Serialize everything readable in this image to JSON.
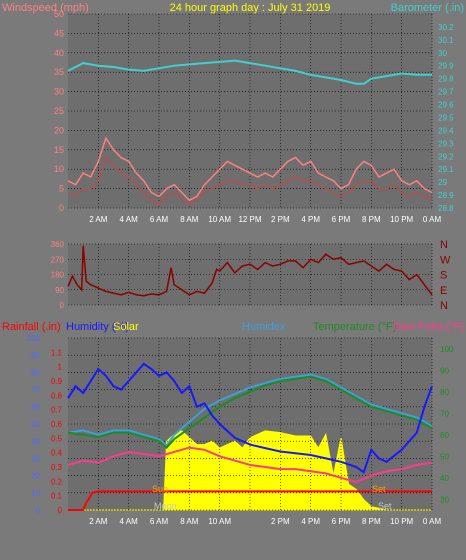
{
  "title": "24 hour graph day : July 31 2019",
  "colors": {
    "background": "#7a7a7a",
    "plot": "#6e6e6e",
    "grid": "#000000",
    "wind_gust": "#ff8080",
    "wind_avg": "#b05050",
    "barometer": "#40d0d0",
    "direction": "#8b0000",
    "rain": "#ff0000",
    "humidity": "#1818ff",
    "solar": "#ffff00",
    "humidex": "#3aa0e0",
    "temperature": "#1e8c1e",
    "dew_point": "#ff3a8a",
    "sun_text": "#ffa000",
    "moon_text": "#c8c8c8"
  },
  "chart_data": [
    {
      "id": "wind",
      "type": "line",
      "ylabel_left": "Windspeed (mph)",
      "ylabel_right": "Barometer (.in)",
      "ylim_left": [
        0,
        50
      ],
      "yticks_left": [
        "0",
        "5",
        "10",
        "15",
        "20",
        "25",
        "30",
        "35",
        "40",
        "45",
        "50"
      ],
      "ylim_right": [
        28.8,
        30.3
      ],
      "yticks_right": [
        "28.8",
        "28.9",
        "29",
        "29.1",
        "29.2",
        "29.3",
        "29.4",
        "29.5",
        "29.6",
        "29.7",
        "29.8",
        "29.9",
        "30",
        "30.1",
        "30.2"
      ],
      "xlim": [
        0,
        24
      ],
      "xticks": [
        "2 AM",
        "4 AM",
        "6 AM",
        "8 AM",
        "10 AM",
        "12 PM",
        "2 PM",
        "4 PM",
        "6 PM",
        "8 PM",
        "10 PM",
        "0 AM"
      ],
      "series": [
        {
          "name": "gust",
          "x": [
            0,
            0.5,
            1,
            1.5,
            2,
            2.5,
            3,
            3.5,
            4,
            4.5,
            5,
            5.5,
            6,
            6.5,
            7,
            7.5,
            8,
            8.5,
            9,
            9.5,
            10,
            10.5,
            11,
            11.5,
            12,
            12.5,
            13,
            13.5,
            14,
            14.5,
            15,
            15.5,
            16,
            16.5,
            17,
            17.5,
            18,
            18.5,
            19,
            19.5,
            20,
            20.5,
            21,
            21.5,
            22,
            22.5,
            23,
            23.5,
            24
          ],
          "values": [
            7,
            6,
            9,
            8,
            12,
            18,
            15,
            13,
            12,
            9,
            7,
            4,
            3,
            5,
            6,
            4,
            2,
            3,
            6,
            8,
            10,
            12,
            11,
            10,
            9,
            8,
            9,
            8,
            10,
            12,
            13,
            11,
            12,
            9,
            8,
            7,
            5,
            6,
            10,
            12,
            11,
            8,
            9,
            10,
            7,
            6,
            7,
            5,
            4
          ]
        },
        {
          "name": "average",
          "x": [
            0,
            0.5,
            1,
            1.5,
            2,
            2.5,
            3,
            3.5,
            4,
            4.5,
            5,
            5.5,
            6,
            6.5,
            7,
            7.5,
            8,
            8.5,
            9,
            9.5,
            10,
            10.5,
            11,
            11.5,
            12,
            12.5,
            13,
            13.5,
            14,
            14.5,
            15,
            15.5,
            16,
            16.5,
            17,
            17.5,
            18,
            18.5,
            19,
            19.5,
            20,
            20.5,
            21,
            21.5,
            22,
            22.5,
            23,
            23.5,
            24
          ],
          "values": [
            4,
            3,
            5,
            5,
            7,
            13,
            11,
            9,
            8,
            6,
            4,
            2,
            1,
            3,
            4,
            2,
            1,
            2,
            4,
            5,
            6,
            7,
            7,
            6,
            6,
            5,
            6,
            5,
            6,
            7,
            8,
            7,
            7,
            6,
            5,
            4,
            3,
            4,
            6,
            7,
            7,
            5,
            5,
            6,
            4,
            3,
            4,
            3,
            2
          ]
        },
        {
          "name": "barometer",
          "axis": "right",
          "x": [
            0,
            1,
            2,
            3,
            4,
            5,
            6,
            7,
            8,
            9,
            10,
            11,
            12,
            13,
            14,
            15,
            16,
            17,
            18,
            19,
            19.5,
            20,
            21,
            22,
            23,
            24
          ],
          "values": [
            29.86,
            29.92,
            29.9,
            29.89,
            29.87,
            29.86,
            29.88,
            29.9,
            29.91,
            29.92,
            29.93,
            29.94,
            29.92,
            29.9,
            29.88,
            29.86,
            29.83,
            29.81,
            29.79,
            29.76,
            29.76,
            29.8,
            29.82,
            29.84,
            29.83,
            29.83
          ]
        }
      ]
    },
    {
      "id": "direction",
      "type": "line",
      "ylim": [
        0,
        360
      ],
      "yticks": [
        "0",
        "90",
        "180",
        "270",
        "360"
      ],
      "compass": [
        "N",
        "W",
        "S",
        "E",
        "N"
      ],
      "xlim": [
        0,
        24
      ],
      "series": [
        {
          "name": "direction",
          "x": [
            0,
            0.3,
            0.6,
            0.9,
            1,
            1.2,
            1.5,
            2,
            2.5,
            3,
            3.5,
            4,
            4.5,
            5,
            5.5,
            6,
            6.5,
            6.8,
            7,
            7.5,
            8,
            8.5,
            9,
            9.5,
            9.8,
            10,
            10.5,
            11,
            11.5,
            12,
            12.5,
            13,
            13.5,
            14,
            14.5,
            15,
            15.5,
            16,
            16.5,
            17,
            17.5,
            18,
            18.5,
            19,
            19.5,
            20,
            20.5,
            21,
            21.5,
            22,
            22.5,
            23,
            23.5,
            24
          ],
          "values": [
            110,
            170,
            120,
            90,
            350,
            140,
            120,
            100,
            80,
            70,
            60,
            75,
            60,
            55,
            65,
            60,
            80,
            220,
            120,
            90,
            60,
            80,
            70,
            130,
            210,
            200,
            250,
            190,
            230,
            240,
            210,
            250,
            230,
            240,
            260,
            260,
            220,
            270,
            250,
            300,
            270,
            280,
            240,
            250,
            260,
            230,
            200,
            240,
            210,
            200,
            150,
            180,
            120,
            60
          ]
        }
      ]
    },
    {
      "id": "conditions",
      "type": "line",
      "ylabel_rain": "Rainfall (.in)",
      "ylabel_humidity": "Humidity (%)",
      "ylabel_solar": "Solar",
      "ylabel_humidex": "Humidex",
      "ylabel_temperature": "Temperature (°F)",
      "ylabel_dew": "Dew Point (°F)",
      "ylim_humidity": [
        0,
        100
      ],
      "yticks_humidity": [
        "0",
        "10",
        "20",
        "30",
        "40",
        "50",
        "60",
        "70",
        "80",
        "90",
        "100"
      ],
      "ylim_rain": [
        0,
        1.2
      ],
      "yticks_rain": [
        "0",
        "0.1",
        "0.2",
        "0.3",
        "0.4",
        "0.5",
        "0.6",
        "0.7",
        "0.8",
        "0.9",
        "1",
        "1.1"
      ],
      "ylim_temp": [
        25,
        105
      ],
      "yticks_temp": [
        "30",
        "40",
        "50",
        "60",
        "70",
        "80",
        "90",
        "100"
      ],
      "xlim": [
        0,
        24
      ],
      "xticks": [
        "2 AM",
        "4 AM",
        "6 AM",
        "8 AM",
        "10 AM",
        "2 PM",
        "4 PM",
        "6 PM",
        "8 PM",
        "10 PM",
        "0 AM"
      ],
      "xticks_hours": [
        2,
        4,
        6,
        8,
        10,
        14,
        16,
        18,
        20,
        22,
        24
      ],
      "series": [
        {
          "name": "humidity",
          "x": [
            0,
            0.5,
            1,
            1.5,
            2,
            2.5,
            3,
            3.5,
            4,
            4.5,
            5,
            5.5,
            6,
            6.5,
            7,
            7.5,
            8,
            8.5,
            9,
            9.5,
            10,
            11,
            12,
            13,
            14,
            15,
            16,
            17,
            18,
            19,
            19.5,
            20,
            20.5,
            21,
            22,
            23,
            23.5,
            24
          ],
          "values": [
            65,
            72,
            68,
            75,
            82,
            78,
            72,
            70,
            75,
            80,
            85,
            82,
            78,
            80,
            75,
            68,
            72,
            60,
            62,
            55,
            50,
            42,
            38,
            36,
            34,
            33,
            32,
            30,
            28,
            25,
            22,
            35,
            30,
            28,
            35,
            45,
            60,
            72
          ]
        },
        {
          "name": "humidex",
          "x": [
            0,
            1,
            2,
            3,
            4,
            5,
            6,
            6.5,
            7,
            8,
            9,
            10,
            11,
            12,
            13,
            14,
            15,
            16,
            17,
            18,
            19,
            20,
            21,
            22,
            23,
            24
          ],
          "values": [
            61,
            62,
            60,
            62,
            62,
            60,
            58,
            55,
            60,
            66,
            72,
            76,
            79,
            82,
            84,
            86,
            87,
            88,
            86,
            82,
            78,
            74,
            72,
            70,
            68,
            64
          ]
        },
        {
          "name": "temperature",
          "x": [
            0,
            1,
            2,
            3,
            4,
            5,
            6,
            6.5,
            7,
            8,
            9,
            10,
            11,
            12,
            13,
            14,
            15,
            16,
            17,
            18,
            19,
            20,
            21,
            22,
            23,
            24
          ],
          "values": [
            61,
            60,
            59,
            61,
            61,
            59,
            57,
            54,
            58,
            63,
            68,
            73,
            77,
            80,
            83,
            85,
            86,
            87,
            85,
            81,
            77,
            73,
            71,
            69,
            67,
            63
          ]
        },
        {
          "name": "dew_point",
          "x": [
            0,
            1,
            2,
            3,
            4,
            5,
            6,
            7,
            8,
            9,
            10,
            11,
            12,
            13,
            14,
            15,
            16,
            17,
            18,
            19,
            20,
            21,
            22,
            23,
            24
          ],
          "values": [
            46,
            48,
            47,
            50,
            52,
            51,
            50,
            52,
            54,
            53,
            50,
            48,
            46,
            45,
            44,
            44,
            43,
            42,
            40,
            38,
            41,
            43,
            44,
            46,
            47
          ]
        },
        {
          "name": "solar",
          "x": [
            0,
            6.3,
            6.5,
            7,
            7.5,
            8,
            8.5,
            9,
            9.5,
            10,
            10.5,
            11,
            11.5,
            12,
            12.5,
            13,
            14,
            15,
            16,
            16.5,
            17,
            17.5,
            18,
            18.5,
            19,
            19.5,
            20,
            20.5,
            21,
            24
          ],
          "values": [
            0,
            0,
            40,
            44,
            46,
            42,
            38,
            38,
            40,
            36,
            38,
            40,
            36,
            42,
            44,
            46,
            45,
            43,
            43,
            36,
            44,
            20,
            42,
            15,
            12,
            6,
            2,
            1,
            0,
            0
          ]
        },
        {
          "name": "rain",
          "x": [
            0,
            1,
            1.2,
            1.4,
            1.6,
            2,
            24
          ],
          "values": [
            0,
            0,
            0.05,
            0.08,
            0.12,
            0.13,
            0.13
          ]
        }
      ]
    }
  ],
  "annotations": {
    "sun_label": "Sun",
    "sun_set_label": "Set",
    "moon_label": "Moon",
    "moon_set_label": "Set"
  }
}
